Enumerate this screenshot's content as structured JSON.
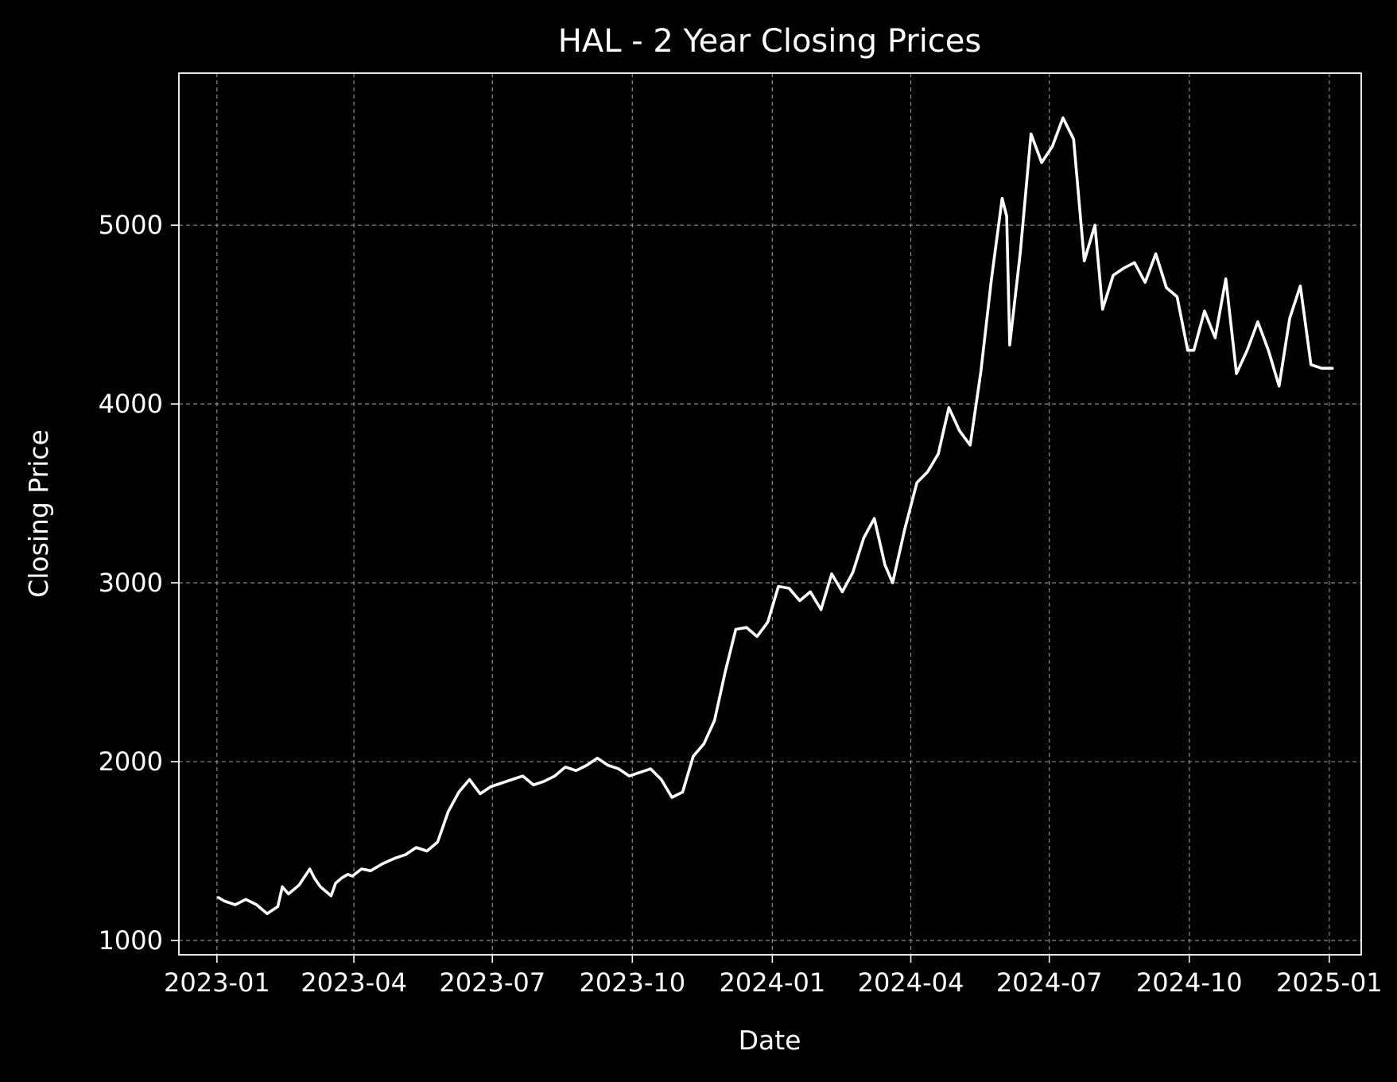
{
  "chart_data": {
    "type": "line",
    "title": "HAL - 2 Year Closing Prices",
    "xlabel": "Date",
    "ylabel": "Closing Price",
    "xlim": [
      "2022-12-07",
      "2025-01-22"
    ],
    "ylim": [
      920,
      5850
    ],
    "grid": true,
    "legend": "none",
    "line_color": "#ffffff",
    "background_color": "#000000",
    "x_ticks": [
      "2023-01",
      "2023-04",
      "2023-07",
      "2023-10",
      "2024-01",
      "2024-04",
      "2024-07",
      "2024-10",
      "2025-01"
    ],
    "x_tick_dates": [
      "2023-01-01",
      "2023-04-01",
      "2023-07-01",
      "2023-10-01",
      "2024-01-01",
      "2024-04-01",
      "2024-07-01",
      "2024-10-01",
      "2025-01-01"
    ],
    "y_ticks": [
      1000,
      2000,
      3000,
      4000,
      5000
    ],
    "series": [
      {
        "x": [
          "2023-01-02",
          "2023-01-06",
          "2023-01-13",
          "2023-01-20",
          "2023-01-27",
          "2023-02-03",
          "2023-02-10",
          "2023-02-13",
          "2023-02-17",
          "2023-02-24",
          "2023-03-03",
          "2023-03-06",
          "2023-03-10",
          "2023-03-17",
          "2023-03-20",
          "2023-03-24",
          "2023-03-28",
          "2023-03-31",
          "2023-04-06",
          "2023-04-12",
          "2023-04-20",
          "2023-04-28",
          "2023-05-05",
          "2023-05-12",
          "2023-05-19",
          "2023-05-26",
          "2023-06-02",
          "2023-06-09",
          "2023-06-16",
          "2023-06-23",
          "2023-06-30",
          "2023-07-07",
          "2023-07-14",
          "2023-07-21",
          "2023-07-28",
          "2023-08-04",
          "2023-08-11",
          "2023-08-18",
          "2023-08-25",
          "2023-09-01",
          "2023-09-08",
          "2023-09-15",
          "2023-09-22",
          "2023-09-29",
          "2023-10-06",
          "2023-10-13",
          "2023-10-20",
          "2023-10-27",
          "2023-11-03",
          "2023-11-10",
          "2023-11-17",
          "2023-11-24",
          "2023-12-01",
          "2023-12-08",
          "2023-12-15",
          "2023-12-22",
          "2023-12-29",
          "2024-01-05",
          "2024-01-12",
          "2024-01-19",
          "2024-01-26",
          "2024-02-02",
          "2024-02-09",
          "2024-02-16",
          "2024-02-23",
          "2024-03-01",
          "2024-03-08",
          "2024-03-15",
          "2024-03-20",
          "2024-03-28",
          "2024-04-05",
          "2024-04-12",
          "2024-04-19",
          "2024-04-26",
          "2024-05-03",
          "2024-05-10",
          "2024-05-17",
          "2024-05-24",
          "2024-05-31",
          "2024-06-03",
          "2024-06-05",
          "2024-06-12",
          "2024-06-19",
          "2024-06-26",
          "2024-07-03",
          "2024-07-10",
          "2024-07-17",
          "2024-07-24",
          "2024-07-31",
          "2024-08-05",
          "2024-08-12",
          "2024-08-19",
          "2024-08-26",
          "2024-09-02",
          "2024-09-09",
          "2024-09-16",
          "2024-09-23",
          "2024-09-30",
          "2024-10-04",
          "2024-10-11",
          "2024-10-18",
          "2024-10-25",
          "2024-11-01",
          "2024-11-08",
          "2024-11-15",
          "2024-11-22",
          "2024-11-29",
          "2024-12-06",
          "2024-12-13",
          "2024-12-20",
          "2024-12-27",
          "2025-01-03"
        ],
        "values": [
          1240,
          1220,
          1200,
          1230,
          1200,
          1150,
          1190,
          1300,
          1260,
          1310,
          1400,
          1350,
          1300,
          1250,
          1320,
          1350,
          1370,
          1360,
          1400,
          1390,
          1430,
          1460,
          1480,
          1520,
          1500,
          1550,
          1720,
          1830,
          1900,
          1820,
          1860,
          1880,
          1900,
          1920,
          1870,
          1890,
          1920,
          1970,
          1950,
          1980,
          2020,
          1980,
          1960,
          1920,
          1940,
          1960,
          1900,
          1800,
          1830,
          2030,
          2100,
          2230,
          2500,
          2740,
          2750,
          2700,
          2780,
          2980,
          2970,
          2900,
          2950,
          2850,
          3050,
          2950,
          3060,
          3250,
          3360,
          3100,
          3000,
          3300,
          3560,
          3620,
          3720,
          3980,
          3850,
          3770,
          4180,
          4700,
          5150,
          5050,
          4330,
          4850,
          5510,
          5350,
          5440,
          5600,
          5480,
          4800,
          5000,
          4530,
          4720,
          4760,
          4790,
          4680,
          4840,
          4650,
          4600,
          4300,
          4300,
          4520,
          4370,
          4700,
          4170,
          4300,
          4460,
          4300,
          4100,
          4480,
          4660,
          4220,
          4200,
          4200
        ]
      }
    ]
  }
}
